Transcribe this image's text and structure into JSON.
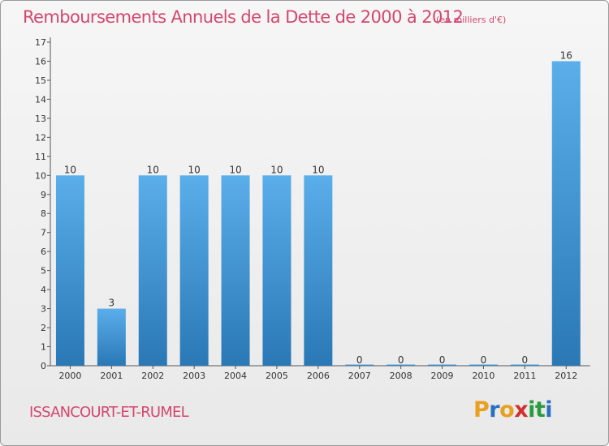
{
  "chart_data": {
    "type": "bar",
    "title": "Remboursements Annuels de la Dette de 2000 à 2012",
    "subtitle": "(en milliers d'€)",
    "categories": [
      "2000",
      "2001",
      "2002",
      "2003",
      "2004",
      "2005",
      "2006",
      "2007",
      "2008",
      "2009",
      "2010",
      "2011",
      "2012"
    ],
    "values": [
      10,
      3,
      10,
      10,
      10,
      10,
      10,
      0,
      0,
      0,
      0,
      0,
      16
    ],
    "data_labels": [
      "10",
      "3",
      "10",
      "10",
      "10",
      "10",
      "10",
      "0",
      "0",
      "0",
      "0",
      "0",
      "16"
    ],
    "xlabel": "",
    "ylabel": "",
    "ylim": [
      0,
      17
    ],
    "yticks": [
      0,
      1,
      2,
      3,
      4,
      5,
      6,
      7,
      8,
      9,
      10,
      11,
      12,
      13,
      14,
      15,
      16,
      17
    ],
    "grid": false,
    "legend": "none",
    "colors": {
      "bar_light": "#5aaeea",
      "bar_dark": "#2a78b6",
      "axis": "#555555"
    }
  },
  "location": "ISSANCOURT-ET-RUMEL",
  "logo": {
    "letters": [
      "P",
      "r",
      "o",
      "x",
      "i",
      "t",
      "i"
    ],
    "colors": [
      "#e8a020",
      "#2a6fc0",
      "#e8a020",
      "#d03030",
      "#2a9a40",
      "#2a9a40",
      "#2a6fc0"
    ]
  }
}
